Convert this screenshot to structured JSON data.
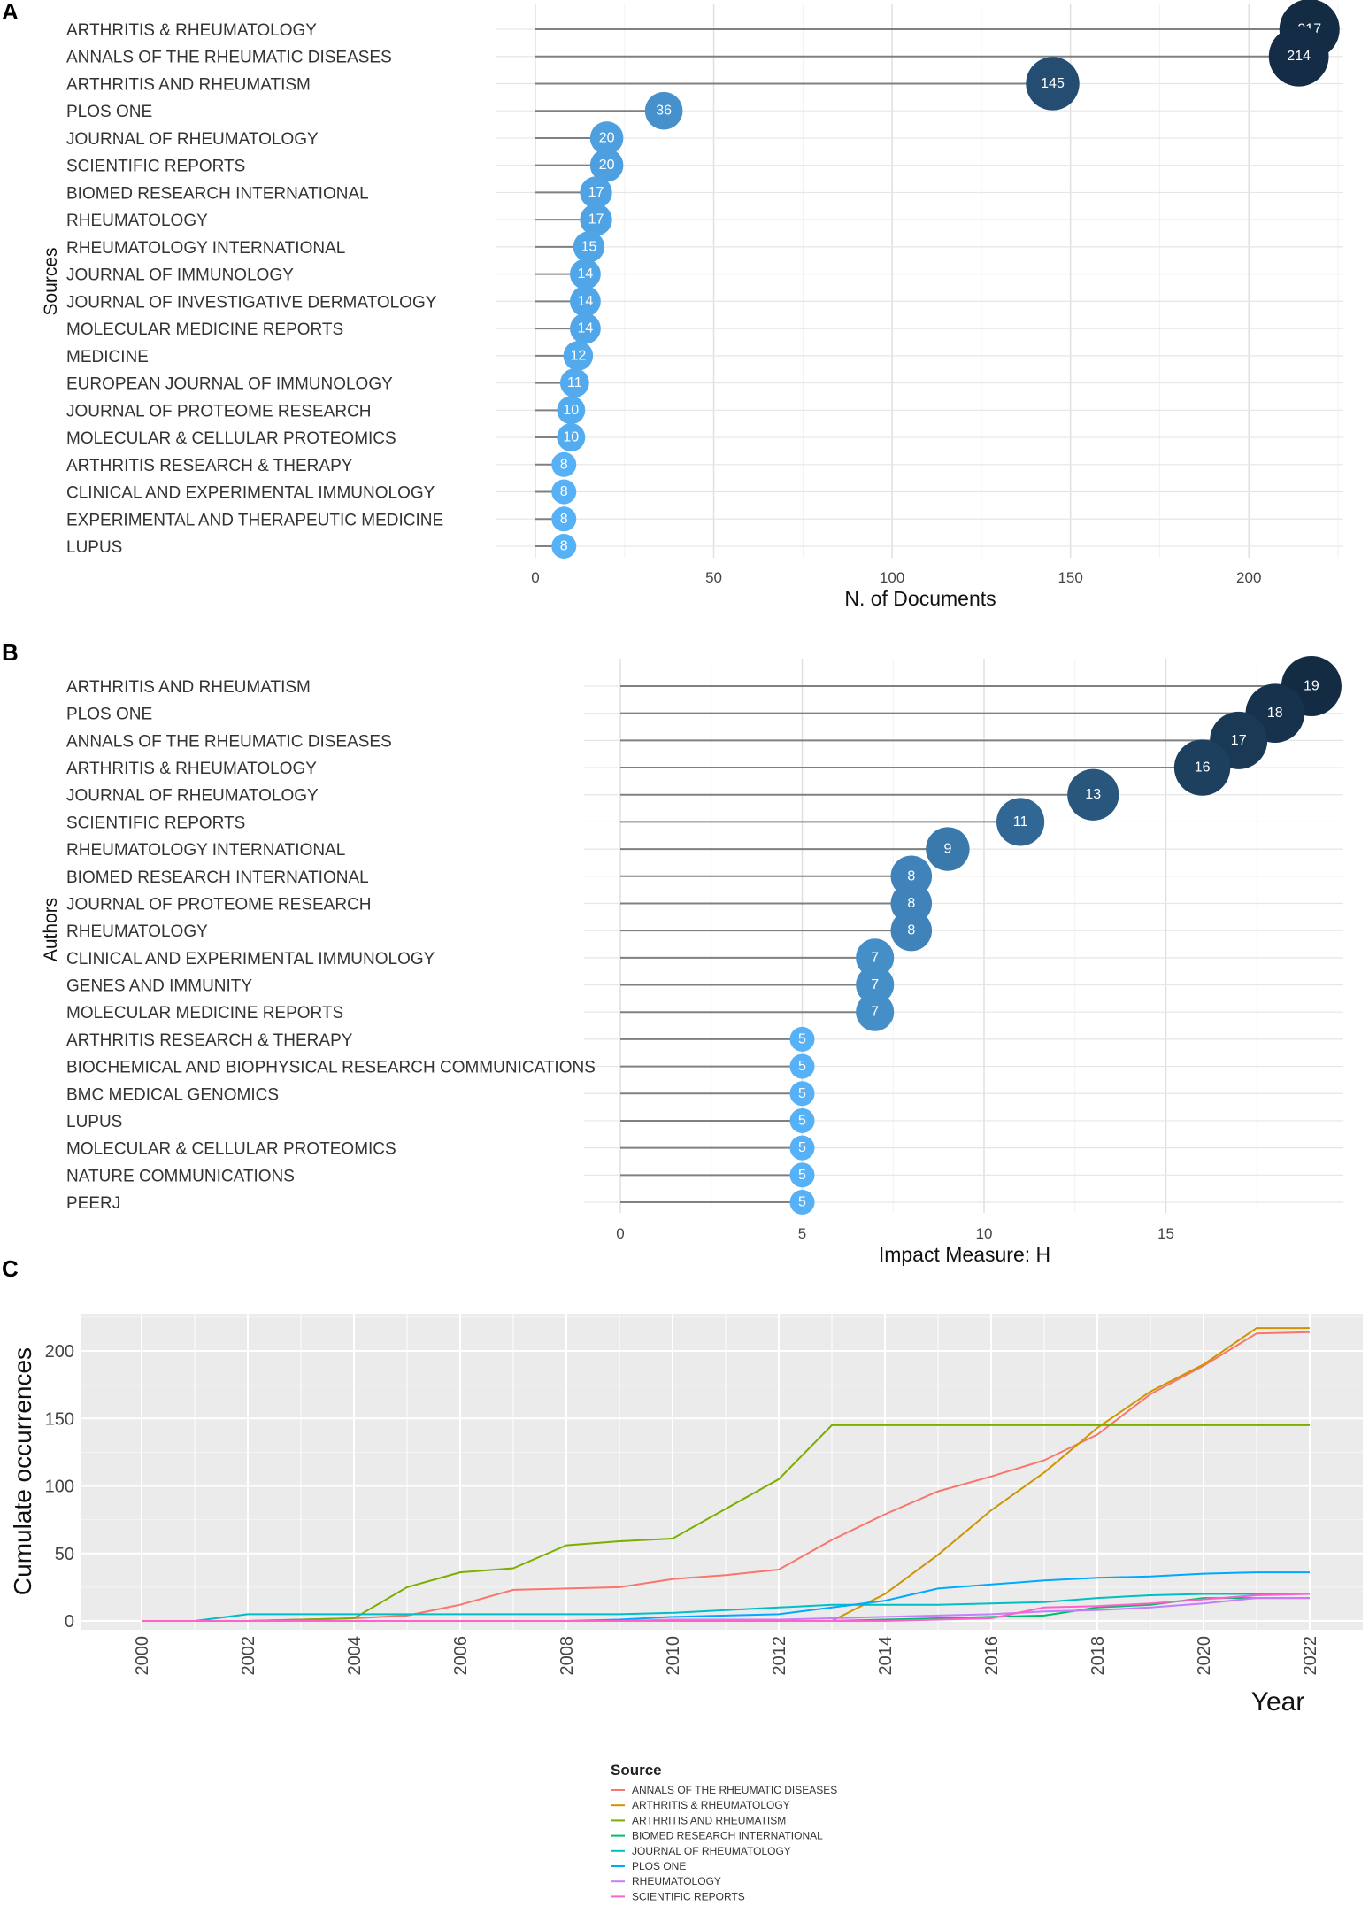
{
  "panels": {
    "a": "A",
    "b": "B",
    "c": "C"
  },
  "colors": {
    "bubble_low": "#56B1F7",
    "bubble_high": "#132B43",
    "stem": "#808080",
    "grid": "#EBEBEB",
    "panel_bg": "#EBEBEB"
  },
  "chart_data": [
    {
      "type": "lollipop",
      "panel": "A",
      "xlabel": "N. of Documents",
      "ylabel": "Sources",
      "xlim": [
        0,
        225
      ],
      "xticks": [
        0,
        50,
        100,
        150,
        200
      ],
      "categories": [
        "ARTHRITIS & RHEUMATOLOGY",
        "ANNALS OF THE RHEUMATIC DISEASES",
        "ARTHRITIS AND RHEUMATISM",
        "PLOS ONE",
        "JOURNAL OF RHEUMATOLOGY",
        "SCIENTIFIC REPORTS",
        "BIOMED RESEARCH INTERNATIONAL",
        "RHEUMATOLOGY",
        "RHEUMATOLOGY INTERNATIONAL",
        "JOURNAL OF IMMUNOLOGY",
        "JOURNAL OF INVESTIGATIVE DERMATOLOGY",
        "MOLECULAR MEDICINE REPORTS",
        "MEDICINE",
        "EUROPEAN JOURNAL OF IMMUNOLOGY",
        "JOURNAL OF PROTEOME RESEARCH",
        "MOLECULAR & CELLULAR PROTEOMICS",
        "ARTHRITIS RESEARCH & THERAPY",
        "CLINICAL AND EXPERIMENTAL IMMUNOLOGY",
        "EXPERIMENTAL AND THERAPEUTIC MEDICINE",
        "LUPUS"
      ],
      "values": [
        217,
        214,
        145,
        36,
        20,
        20,
        17,
        17,
        15,
        14,
        14,
        14,
        12,
        11,
        10,
        10,
        8,
        8,
        8,
        8
      ]
    },
    {
      "type": "lollipop",
      "panel": "B",
      "xlabel": "Impact Measure: H",
      "ylabel": "Authors",
      "xlim": [
        0,
        20
      ],
      "xticks": [
        0,
        5,
        10,
        15
      ],
      "categories": [
        "ARTHRITIS AND RHEUMATISM",
        "PLOS ONE",
        "ANNALS OF THE RHEUMATIC DISEASES",
        "ARTHRITIS & RHEUMATOLOGY",
        "JOURNAL OF RHEUMATOLOGY",
        "SCIENTIFIC REPORTS",
        "RHEUMATOLOGY INTERNATIONAL",
        "BIOMED RESEARCH INTERNATIONAL",
        "JOURNAL OF PROTEOME RESEARCH",
        "RHEUMATOLOGY",
        "CLINICAL AND EXPERIMENTAL IMMUNOLOGY",
        "GENES AND IMMUNITY",
        "MOLECULAR MEDICINE REPORTS",
        "ARTHRITIS RESEARCH & THERAPY",
        "BIOCHEMICAL AND BIOPHYSICAL RESEARCH COMMUNICATIONS",
        "BMC MEDICAL GENOMICS",
        "LUPUS",
        "MOLECULAR & CELLULAR PROTEOMICS",
        "NATURE COMMUNICATIONS",
        "PEERJ"
      ],
      "values": [
        19,
        18,
        17,
        16,
        13,
        11,
        9,
        8,
        8,
        8,
        7,
        7,
        7,
        5,
        5,
        5,
        5,
        5,
        5,
        5
      ]
    },
    {
      "type": "line",
      "panel": "C",
      "xlabel": "Year",
      "ylabel": "Cumulate occurrences",
      "ylim": [
        0,
        225
      ],
      "yticks": [
        0,
        50,
        100,
        150,
        200
      ],
      "xticks": [
        2000,
        2002,
        2004,
        2006,
        2008,
        2010,
        2012,
        2014,
        2016,
        2018,
        2020,
        2022
      ],
      "x": [
        2000,
        2001,
        2002,
        2003,
        2004,
        2005,
        2006,
        2007,
        2008,
        2009,
        2010,
        2011,
        2012,
        2013,
        2014,
        2015,
        2016,
        2017,
        2018,
        2019,
        2020,
        2021,
        2022
      ],
      "legend_title": "Source",
      "series": [
        {
          "name": "ANNALS OF THE RHEUMATIC DISEASES",
          "color": "#F8766D",
          "values": [
            0,
            0,
            0,
            1,
            2,
            4,
            12,
            23,
            24,
            25,
            31,
            34,
            38,
            60,
            79,
            96,
            107,
            119,
            138,
            168,
            189,
            213,
            214
          ]
        },
        {
          "name": "ARTHRITIS & RHEUMATOLOGY",
          "color": "#CD9600",
          "values": [
            0,
            0,
            0,
            0,
            0,
            0,
            0,
            0,
            0,
            0,
            0,
            0,
            0,
            0,
            20,
            49,
            82,
            110,
            143,
            170,
            190,
            217,
            217
          ]
        },
        {
          "name": "ARTHRITIS AND RHEUMATISM",
          "color": "#7CAE00",
          "values": [
            0,
            0,
            0,
            1,
            2,
            25,
            36,
            39,
            56,
            59,
            61,
            83,
            105,
            145,
            145,
            145,
            145,
            145,
            145,
            145,
            145,
            145,
            145
          ]
        },
        {
          "name": "BIOMED RESEARCH INTERNATIONAL",
          "color": "#00BE67",
          "values": [
            0,
            0,
            0,
            0,
            0,
            0,
            0,
            0,
            0,
            0,
            0,
            0,
            0,
            0,
            1,
            2,
            3,
            4,
            10,
            12,
            17,
            17,
            17
          ]
        },
        {
          "name": "JOURNAL OF RHEUMATOLOGY",
          "color": "#00BFC4",
          "values": [
            0,
            0,
            5,
            5,
            5,
            5,
            5,
            5,
            5,
            5,
            6,
            8,
            10,
            12,
            12,
            12,
            13,
            14,
            17,
            19,
            20,
            20,
            20
          ]
        },
        {
          "name": "PLOS ONE",
          "color": "#00A9FF",
          "values": [
            0,
            0,
            0,
            0,
            0,
            0,
            0,
            0,
            0,
            1,
            3,
            4,
            5,
            10,
            15,
            24,
            27,
            30,
            32,
            33,
            35,
            36,
            36
          ]
        },
        {
          "name": "RHEUMATOLOGY",
          "color": "#C77CFF",
          "values": [
            0,
            0,
            0,
            0,
            0,
            0,
            0,
            0,
            0,
            0,
            1,
            1,
            1,
            2,
            3,
            4,
            5,
            7,
            8,
            10,
            13,
            17,
            17
          ]
        },
        {
          "name": "SCIENTIFIC REPORTS",
          "color": "#FF61CC",
          "values": [
            0,
            0,
            0,
            0,
            0,
            0,
            0,
            0,
            0,
            0,
            0,
            0,
            0,
            0,
            0,
            1,
            2,
            10,
            11,
            13,
            16,
            19,
            20
          ]
        }
      ]
    }
  ]
}
